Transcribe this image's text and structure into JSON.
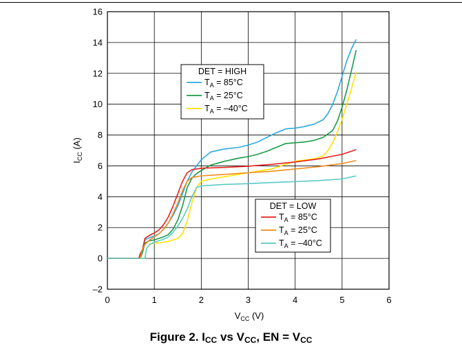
{
  "figure": {
    "caption_parts": [
      "Figure 2. I",
      "CC",
      " vs V",
      "CC",
      ", EN = V",
      "CC"
    ]
  },
  "chart_data": {
    "type": "line",
    "x_axis": {
      "label_main": "V",
      "label_sub": "CC",
      "label_unit": " (V)",
      "range": [
        0,
        6
      ],
      "ticks": [
        0,
        1,
        2,
        3,
        4,
        5,
        6
      ]
    },
    "y_axis": {
      "label_main": "I",
      "label_sub": "CC",
      "label_unit": " (A)",
      "range": [
        -2,
        16
      ],
      "ticks": [
        -2,
        0,
        2,
        4,
        6,
        8,
        10,
        12,
        14,
        16
      ],
      "tick_labels": [
        "–2",
        "0",
        "2",
        "4",
        "6",
        "8",
        "10",
        "12",
        "14",
        "16"
      ]
    },
    "grid": true,
    "legends": [
      {
        "title": "DET = HIGH",
        "placement": "upper-left-center",
        "entries": [
          {
            "series": "high_85",
            "prefix": "T",
            "sub": "A",
            "suffix": " = 85°C"
          },
          {
            "series": "high_25",
            "prefix": "T",
            "sub": "A",
            "suffix": " = 25°C"
          },
          {
            "series": "high_m40",
            "prefix": "T",
            "sub": "A",
            "suffix": " = –40°C"
          }
        ]
      },
      {
        "title": "DET = LOW",
        "placement": "lower-right",
        "entries": [
          {
            "series": "low_85",
            "prefix": "T",
            "sub": "A",
            "suffix": " = 85°C"
          },
          {
            "series": "low_25",
            "prefix": "T",
            "sub": "A",
            "suffix": " = 25°C"
          },
          {
            "series": "low_m40",
            "prefix": "T",
            "sub": "A",
            "suffix": " = –40°C"
          }
        ]
      }
    ],
    "series": [
      {
        "id": "high_85",
        "color": "#29a8e0",
        "x": [
          0,
          0.67,
          0.7,
          0.75,
          0.8,
          0.9,
          1.0,
          1.1,
          1.2,
          1.3,
          1.4,
          1.5,
          1.6,
          1.7,
          1.8,
          1.9,
          2.0,
          2.2,
          2.5,
          2.8,
          3.0,
          3.2,
          3.4,
          3.6,
          3.8,
          4.0,
          4.2,
          4.4,
          4.6,
          4.7,
          4.8,
          4.9,
          5.0,
          5.1,
          5.2,
          5.3
        ],
        "y": [
          0,
          0,
          0.3,
          0.6,
          1.2,
          1.35,
          1.45,
          1.6,
          1.9,
          2.3,
          2.8,
          3.4,
          4.2,
          5.0,
          5.6,
          6.0,
          6.4,
          6.9,
          7.1,
          7.2,
          7.35,
          7.55,
          7.85,
          8.15,
          8.4,
          8.45,
          8.55,
          8.7,
          9.0,
          9.4,
          10.0,
          10.8,
          11.8,
          12.8,
          13.6,
          14.2
        ]
      },
      {
        "id": "high_25",
        "color": "#1a9a45",
        "x": [
          0,
          0.7,
          0.75,
          0.8,
          0.9,
          1.0,
          1.1,
          1.2,
          1.3,
          1.4,
          1.5,
          1.6,
          1.7,
          1.8,
          1.9,
          2.0,
          2.2,
          2.5,
          2.8,
          3.0,
          3.2,
          3.4,
          3.6,
          3.8,
          4.0,
          4.2,
          4.4,
          4.6,
          4.8,
          4.9,
          5.0,
          5.1,
          5.2,
          5.3
        ],
        "y": [
          0,
          0,
          0.4,
          1.0,
          1.15,
          1.2,
          1.3,
          1.4,
          1.55,
          1.9,
          2.5,
          3.4,
          4.6,
          5.2,
          5.5,
          5.7,
          6.05,
          6.3,
          6.5,
          6.6,
          6.75,
          6.95,
          7.2,
          7.45,
          7.5,
          7.55,
          7.65,
          7.85,
          8.3,
          8.9,
          9.8,
          10.9,
          12.2,
          13.5
        ]
      },
      {
        "id": "high_m40",
        "color": "#ffe100",
        "x": [
          0,
          0.8,
          0.83,
          0.9,
          1.0,
          1.1,
          1.2,
          1.3,
          1.4,
          1.5,
          1.6,
          1.7,
          1.8,
          1.9,
          2.0,
          2.2,
          2.5,
          3.0,
          3.5,
          4.0,
          4.4,
          4.6,
          4.7,
          4.8,
          4.9,
          5.0,
          5.1,
          5.2,
          5.3
        ],
        "y": [
          0,
          0,
          0.6,
          0.9,
          1.0,
          1.0,
          1.05,
          1.1,
          1.2,
          1.3,
          1.6,
          2.4,
          3.6,
          4.6,
          5.0,
          5.15,
          5.3,
          5.55,
          5.8,
          6.3,
          6.45,
          6.65,
          7.0,
          7.5,
          8.2,
          9.0,
          10.0,
          11.0,
          12.1
        ]
      },
      {
        "id": "low_85",
        "color": "#e8201a",
        "x": [
          0,
          0.67,
          0.7,
          0.75,
          0.8,
          0.9,
          1.0,
          1.1,
          1.2,
          1.3,
          1.4,
          1.5,
          1.6,
          1.7,
          1.8,
          1.9,
          2.0,
          2.5,
          3.0,
          3.5,
          4.0,
          4.5,
          5.0,
          5.3
        ],
        "y": [
          0,
          0,
          0.3,
          0.6,
          1.3,
          1.5,
          1.65,
          1.85,
          2.2,
          2.7,
          3.4,
          4.2,
          5.0,
          5.55,
          5.75,
          5.8,
          5.85,
          5.9,
          5.98,
          6.1,
          6.25,
          6.45,
          6.75,
          7.05
        ]
      },
      {
        "id": "low_25",
        "color": "#f08a1c",
        "x": [
          0,
          0.7,
          0.73,
          0.8,
          0.9,
          1.0,
          1.1,
          1.2,
          1.3,
          1.4,
          1.5,
          1.6,
          1.7,
          1.8,
          1.9,
          2.0,
          2.5,
          3.0,
          3.5,
          4.0,
          4.5,
          5.0,
          5.3
        ],
        "y": [
          0,
          0,
          0.5,
          0.9,
          1.2,
          1.4,
          1.6,
          1.9,
          2.3,
          2.9,
          3.6,
          4.4,
          5.0,
          5.25,
          5.3,
          5.35,
          5.45,
          5.55,
          5.65,
          5.8,
          5.95,
          6.15,
          6.35
        ]
      },
      {
        "id": "low_m40",
        "color": "#5bc8c8",
        "x": [
          0,
          0.8,
          0.83,
          0.9,
          1.0,
          1.1,
          1.2,
          1.3,
          1.4,
          1.5,
          1.6,
          1.7,
          1.8,
          1.9,
          2.0,
          2.5,
          3.0,
          3.5,
          4.0,
          4.5,
          5.0,
          5.3
        ],
        "y": [
          0,
          0,
          0.6,
          0.9,
          1.05,
          1.15,
          1.25,
          1.4,
          1.7,
          2.1,
          2.6,
          3.2,
          4.0,
          4.6,
          4.7,
          4.8,
          4.85,
          4.92,
          4.98,
          5.05,
          5.15,
          5.35
        ]
      }
    ]
  }
}
